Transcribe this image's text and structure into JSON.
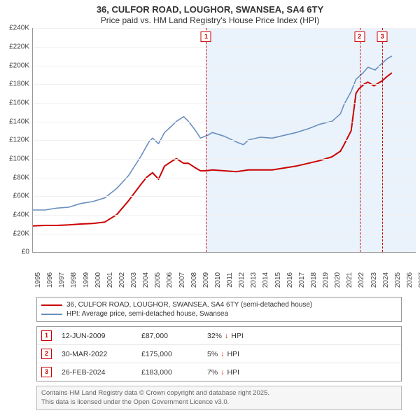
{
  "header": {
    "title": "36, CULFOR ROAD, LOUGHOR, SWANSEA, SA4 6TY",
    "subtitle": "Price paid vs. HM Land Registry's House Price Index (HPI)"
  },
  "chart": {
    "type": "line",
    "x_start": 1995,
    "x_end": 2027,
    "x_ticks": [
      1995,
      1996,
      1997,
      1998,
      1999,
      2000,
      2001,
      2002,
      2003,
      2004,
      2005,
      2006,
      2007,
      2008,
      2009,
      2010,
      2011,
      2012,
      2013,
      2014,
      2015,
      2016,
      2017,
      2018,
      2019,
      2020,
      2021,
      2022,
      2023,
      2024,
      2025,
      2026,
      2027
    ],
    "y_min": 0,
    "y_max": 240000,
    "y_ticks": [
      0,
      20000,
      40000,
      60000,
      80000,
      100000,
      120000,
      140000,
      160000,
      180000,
      200000,
      220000,
      240000
    ],
    "y_tick_labels": [
      "£0",
      "£20K",
      "£40K",
      "£60K",
      "£80K",
      "£100K",
      "£120K",
      "£140K",
      "£160K",
      "£180K",
      "£200K",
      "£220K",
      "£240K"
    ],
    "background_color": "#ffffff",
    "grid_color": "#f0f0f0",
    "shaded_from": 2009.45,
    "shaded_to": 2027,
    "shaded_color": "#eaf3fb",
    "series": {
      "property": {
        "color": "#cc0000",
        "width": 2,
        "data": [
          [
            1995,
            28000
          ],
          [
            1996,
            28500
          ],
          [
            1997,
            28500
          ],
          [
            1998,
            29000
          ],
          [
            1999,
            30000
          ],
          [
            2000,
            30500
          ],
          [
            2001,
            32000
          ],
          [
            2002,
            40000
          ],
          [
            2003,
            55000
          ],
          [
            2004,
            72000
          ],
          [
            2004.5,
            80000
          ],
          [
            2005,
            85000
          ],
          [
            2005.5,
            78000
          ],
          [
            2006,
            92000
          ],
          [
            2006.7,
            98000
          ],
          [
            2007,
            100000
          ],
          [
            2007.6,
            95000
          ],
          [
            2008,
            95000
          ],
          [
            2008.6,
            90000
          ],
          [
            2009,
            87000
          ],
          [
            2009.45,
            87000
          ],
          [
            2010,
            88000
          ],
          [
            2011,
            87000
          ],
          [
            2012,
            86000
          ],
          [
            2013,
            88000
          ],
          [
            2014,
            88000
          ],
          [
            2015,
            88000
          ],
          [
            2016,
            90000
          ],
          [
            2017,
            92000
          ],
          [
            2018,
            95000
          ],
          [
            2019,
            98000
          ],
          [
            2020,
            102000
          ],
          [
            2020.7,
            108000
          ],
          [
            2021,
            115000
          ],
          [
            2021.6,
            130000
          ],
          [
            2022,
            170000
          ],
          [
            2022.25,
            175000
          ],
          [
            2022.7,
            180000
          ],
          [
            2023,
            182000
          ],
          [
            2023.5,
            178000
          ],
          [
            2024,
            182000
          ],
          [
            2024.15,
            183000
          ],
          [
            2024.6,
            188000
          ],
          [
            2025,
            192000
          ]
        ]
      },
      "hpi": {
        "color": "#6a8fbf",
        "width": 1.6,
        "data": [
          [
            1995,
            45000
          ],
          [
            1996,
            45000
          ],
          [
            1997,
            47000
          ],
          [
            1998,
            48000
          ],
          [
            1999,
            52000
          ],
          [
            2000,
            54000
          ],
          [
            2001,
            58000
          ],
          [
            2002,
            68000
          ],
          [
            2003,
            82000
          ],
          [
            2004,
            102000
          ],
          [
            2004.7,
            118000
          ],
          [
            2005,
            122000
          ],
          [
            2005.5,
            116000
          ],
          [
            2006,
            128000
          ],
          [
            2006.6,
            135000
          ],
          [
            2007,
            140000
          ],
          [
            2007.6,
            145000
          ],
          [
            2008,
            140000
          ],
          [
            2008.6,
            130000
          ],
          [
            2009,
            122000
          ],
          [
            2009.6,
            125000
          ],
          [
            2010,
            128000
          ],
          [
            2011,
            124000
          ],
          [
            2012,
            118000
          ],
          [
            2012.6,
            115000
          ],
          [
            2013,
            120000
          ],
          [
            2014,
            123000
          ],
          [
            2015,
            122000
          ],
          [
            2016,
            125000
          ],
          [
            2017,
            128000
          ],
          [
            2018,
            132000
          ],
          [
            2019,
            137000
          ],
          [
            2020,
            140000
          ],
          [
            2020.7,
            148000
          ],
          [
            2021,
            158000
          ],
          [
            2021.6,
            172000
          ],
          [
            2022,
            185000
          ],
          [
            2022.6,
            192000
          ],
          [
            2023,
            198000
          ],
          [
            2023.6,
            195000
          ],
          [
            2024,
            200000
          ],
          [
            2024.6,
            207000
          ],
          [
            2025,
            210000
          ]
        ]
      }
    },
    "markers": [
      {
        "id": "1",
        "x": 2009.45
      },
      {
        "id": "2",
        "x": 2022.25
      },
      {
        "id": "3",
        "x": 2024.15
      }
    ],
    "marker_line_color": "#cc0000"
  },
  "legend": {
    "property_label": "36, CULFOR ROAD, LOUGHOR, SWANSEA, SA4 6TY (semi-detached house)",
    "hpi_label": "HPI: Average price, semi-detached house, Swansea"
  },
  "sales": [
    {
      "id": "1",
      "date": "12-JUN-2009",
      "price": "£87,000",
      "delta": "32%",
      "dir": "down",
      "vs": "HPI"
    },
    {
      "id": "2",
      "date": "30-MAR-2022",
      "price": "£175,000",
      "delta": "5%",
      "dir": "down",
      "vs": "HPI"
    },
    {
      "id": "3",
      "date": "26-FEB-2024",
      "price": "£183,000",
      "delta": "7%",
      "dir": "down",
      "vs": "HPI"
    }
  ],
  "credit": {
    "line1": "Contains HM Land Registry data © Crown copyright and database right 2025.",
    "line2": "This data is licensed under the Open Government Licence v3.0."
  },
  "colors": {
    "down_arrow": "#d11507"
  }
}
